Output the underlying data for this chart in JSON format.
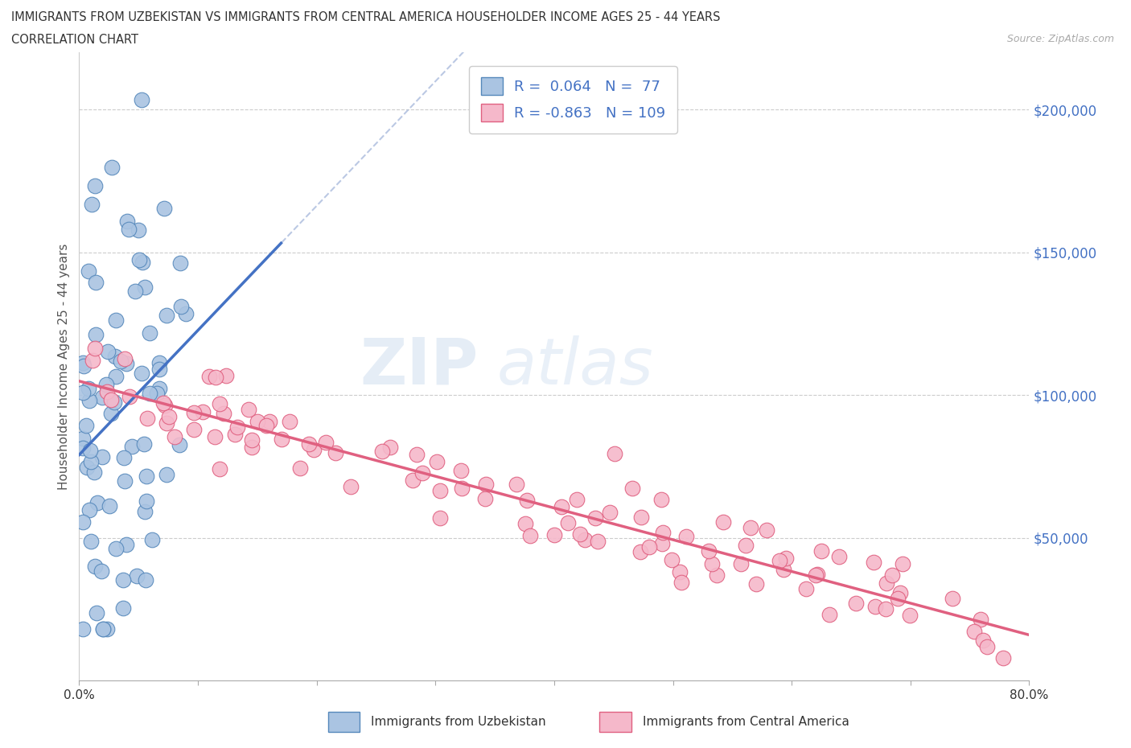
{
  "title_line1": "IMMIGRANTS FROM UZBEKISTAN VS IMMIGRANTS FROM CENTRAL AMERICA HOUSEHOLDER INCOME AGES 25 - 44 YEARS",
  "title_line2": "CORRELATION CHART",
  "source_text": "Source: ZipAtlas.com",
  "ylabel": "Householder Income Ages 25 - 44 years",
  "xlim": [
    0.0,
    0.8
  ],
  "ylim": [
    0,
    220000
  ],
  "yticks_right": [
    0,
    50000,
    100000,
    150000,
    200000
  ],
  "ytick_labels_right": [
    "",
    "$50,000",
    "$100,000",
    "$150,000",
    "$200,000"
  ],
  "hlines": [
    50000,
    100000,
    150000,
    200000
  ],
  "series1_color": "#aac4e2",
  "series1_edge": "#5588bb",
  "series2_color": "#f5b8ca",
  "series2_edge": "#e06080",
  "trend1_color": "#4472c4",
  "trend2_color": "#e06080",
  "legend_label1": "Immigrants from Uzbekistan",
  "legend_label2": "Immigrants from Central America",
  "R1": 0.064,
  "N1": 77,
  "R2": -0.863,
  "N2": 109,
  "watermark_zip": "ZIP",
  "watermark_atlas": "atlas",
  "background_color": "#ffffff",
  "seed_uzb": 123,
  "seed_ca": 456
}
